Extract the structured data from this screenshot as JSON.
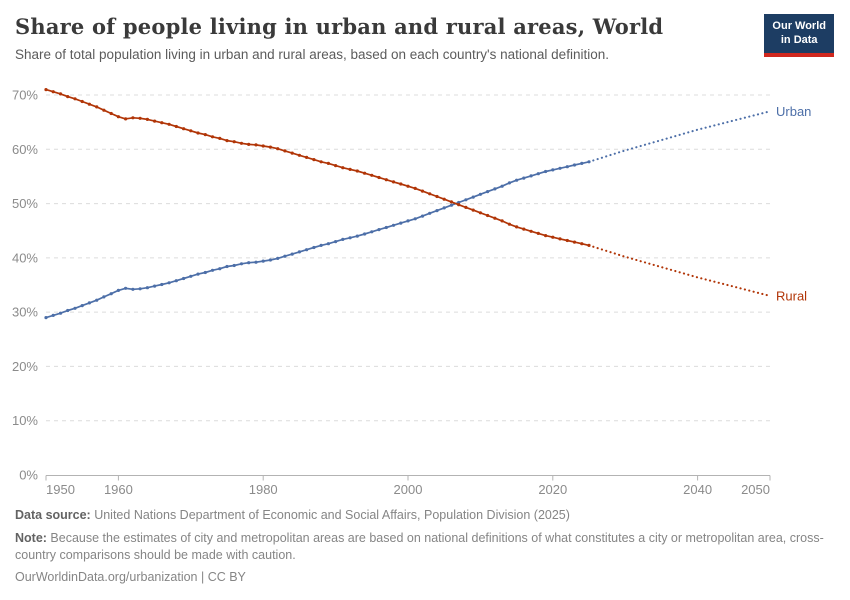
{
  "header": {
    "title": "Share of people living in urban and rural areas, World",
    "subtitle": "Share of total population living in urban and rural areas, based on each country's national definition.",
    "logo": {
      "line1": "Our World",
      "line2": "in Data",
      "bg_color": "#1d3d63",
      "bar_color": "#d0281e"
    }
  },
  "chart_data": {
    "type": "line",
    "title": "Share of people living in urban and rural areas, World",
    "xlabel": "",
    "ylabel": "",
    "grid": true,
    "x_axis": {
      "min": 1950,
      "max": 2050,
      "ticks": [
        1950,
        1960,
        1980,
        2000,
        2020,
        2040,
        2050
      ]
    },
    "y_axis": {
      "min": 0,
      "max": 71.8,
      "ticks": [
        0,
        10,
        20,
        30,
        40,
        50,
        60,
        70
      ],
      "suffix": "%"
    },
    "legend_position": "line-end-labels",
    "series": [
      {
        "name": "Urban",
        "label": "Urban",
        "color": "#4d6fa8",
        "solid": {
          "year_start": 1950,
          "year_step": 1,
          "values": [
            29.0,
            29.4,
            29.8,
            30.3,
            30.7,
            31.2,
            31.7,
            32.2,
            32.8,
            33.4,
            34.0,
            34.4,
            34.2,
            34.3,
            34.5,
            34.8,
            35.1,
            35.4,
            35.8,
            36.2,
            36.6,
            37.0,
            37.3,
            37.7,
            38.0,
            38.4,
            38.6,
            38.9,
            39.1,
            39.2,
            39.4,
            39.6,
            39.9,
            40.3,
            40.7,
            41.1,
            41.5,
            41.9,
            42.3,
            42.6,
            43.0,
            43.4,
            43.7,
            44.0,
            44.4,
            44.8,
            45.2,
            45.6,
            46.0,
            46.4,
            46.8,
            47.2,
            47.7,
            48.2,
            48.7,
            49.2,
            49.7,
            50.2,
            50.7,
            51.2,
            51.7,
            52.2,
            52.7,
            53.2,
            53.8,
            54.3,
            54.7,
            55.1,
            55.5,
            55.9,
            56.2,
            56.5,
            56.8,
            57.1,
            57.4,
            57.7
          ]
        },
        "projection": {
          "years": [
            2025,
            2030,
            2035,
            2040,
            2045,
            2050
          ],
          "values": [
            57.7,
            59.8,
            61.7,
            63.6,
            65.3,
            67.0
          ]
        }
      },
      {
        "name": "Rural",
        "label": "Rural",
        "color": "#b13507",
        "solid": {
          "year_start": 1950,
          "year_step": 1,
          "values": [
            71.0,
            70.6,
            70.2,
            69.7,
            69.3,
            68.8,
            68.3,
            67.8,
            67.2,
            66.6,
            66.0,
            65.6,
            65.8,
            65.7,
            65.5,
            65.2,
            64.9,
            64.6,
            64.2,
            63.8,
            63.4,
            63.0,
            62.7,
            62.3,
            62.0,
            61.6,
            61.4,
            61.1,
            60.9,
            60.8,
            60.6,
            60.4,
            60.1,
            59.7,
            59.3,
            58.9,
            58.5,
            58.1,
            57.7,
            57.4,
            57.0,
            56.6,
            56.3,
            56.0,
            55.6,
            55.2,
            54.8,
            54.4,
            54.0,
            53.6,
            53.2,
            52.8,
            52.3,
            51.8,
            51.3,
            50.8,
            50.3,
            49.8,
            49.3,
            48.8,
            48.3,
            47.8,
            47.3,
            46.8,
            46.2,
            45.7,
            45.3,
            44.9,
            44.5,
            44.1,
            43.8,
            43.5,
            43.2,
            42.9,
            42.6,
            42.3
          ]
        },
        "projection": {
          "years": [
            2025,
            2030,
            2035,
            2040,
            2045,
            2050
          ],
          "values": [
            42.3,
            40.2,
            38.3,
            36.4,
            34.7,
            33.0
          ]
        }
      }
    ]
  },
  "footer": {
    "source_label": "Data source:",
    "source_text": " United Nations Department of Economic and Social Affairs, Population Division (2025)",
    "note_label": "Note:",
    "note_text": " Because the estimates of city and metropolitan areas are based on national definitions of what constitutes a city or metropolitan area, cross-country comparisons should be made with caution.",
    "link": "OurWorldinData.org/urbanization | CC BY"
  }
}
